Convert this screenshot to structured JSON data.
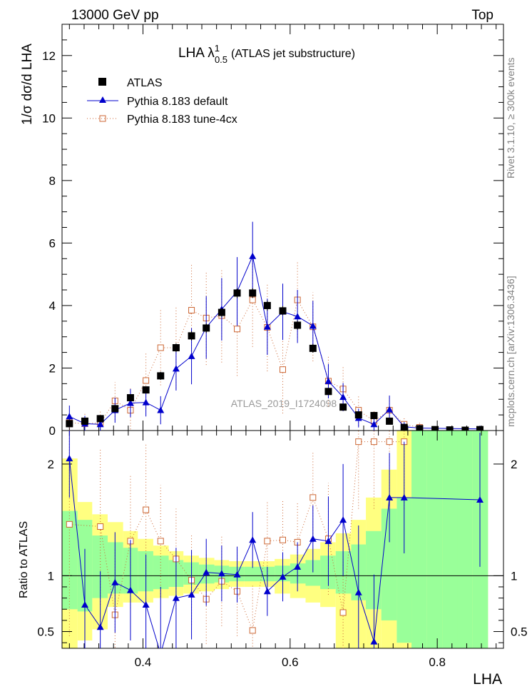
{
  "header": {
    "energy_label": "13000 GeV pp",
    "process_label": "Top"
  },
  "side_labels": {
    "rivet": "Rivet 3.1.10, ≥ 300k events",
    "mcplots": "mcplots.cern.ch [arXiv:1306.3436]"
  },
  "chart_data": {
    "type": "scatter",
    "title": "LHA λ¹₀.₅ (ATLAS jet substructure)",
    "analysis_id": "ATLAS_2019_I1724098",
    "xlabel": "LHA",
    "ylabel_main": "1/σ dσ/d LHA",
    "ylabel_ratio": "Ratio to ATLAS",
    "xlim": [
      0.29,
      0.89
    ],
    "ylim_main": [
      0,
      13
    ],
    "ylim_ratio": [
      0.35,
      2.3
    ],
    "x_ticks": [
      0.4,
      0.6,
      0.8
    ],
    "y_ticks_main": [
      0,
      2,
      4,
      6,
      8,
      10,
      12
    ],
    "y_ticks_ratio": [
      0.5,
      1,
      2
    ],
    "x_tick_labels": [
      "0.4",
      "0.6",
      "0.8"
    ],
    "y_tick_labels_main": [
      "0",
      "2",
      "4",
      "6",
      "8",
      "10",
      "12"
    ],
    "y_tick_labels_ratio": [
      "0.5",
      "1",
      "2"
    ],
    "legend": {
      "placement": "top-left",
      "entries": [
        "ATLAS",
        "Pythia 8.183 default",
        "Pythia 8.183 tune-4cx"
      ]
    },
    "bins": [
      0.29,
      0.311,
      0.331,
      0.352,
      0.373,
      0.393,
      0.414,
      0.435,
      0.455,
      0.476,
      0.497,
      0.517,
      0.538,
      0.559,
      0.579,
      0.6,
      0.621,
      0.641,
      0.662,
      0.683,
      0.703,
      0.724,
      0.745,
      0.765,
      0.786,
      0.807,
      0.827,
      0.848,
      0.869
    ],
    "atlas": {
      "name": "ATLAS",
      "color": "#000000",
      "x": [
        0.3,
        0.321,
        0.342,
        0.362,
        0.383,
        0.404,
        0.424,
        0.445,
        0.466,
        0.486,
        0.507,
        0.528,
        0.549,
        0.569,
        0.59,
        0.61,
        0.631,
        0.652,
        0.672,
        0.693,
        0.714,
        0.735,
        0.755,
        0.776,
        0.797,
        0.817,
        0.838,
        0.858
      ],
      "y": [
        0.22,
        0.3,
        0.38,
        0.7,
        1.05,
        1.3,
        1.75,
        2.65,
        3.03,
        3.28,
        3.78,
        4.4,
        4.4,
        4.0,
        3.83,
        3.37,
        2.63,
        1.25,
        0.75,
        0.5,
        0.48,
        0.3,
        0.1,
        0.06,
        0.03,
        0.02,
        0.01,
        0.03
      ],
      "yerr": [
        0.04,
        0.04,
        0.05,
        0.08,
        0.1,
        0.11,
        0.13,
        0.14,
        0.15,
        0.15,
        0.15,
        0.16,
        0.16,
        0.16,
        0.15,
        0.15,
        0.14,
        0.11,
        0.08,
        0.07,
        0.07,
        0.06,
        0.04,
        0.03,
        0.02,
        0.02,
        0.01,
        0.02
      ]
    },
    "series": [
      {
        "name": "Pythia 8.183 default",
        "color": "#0000cc",
        "marker": "triangle",
        "x": [
          0.3,
          0.321,
          0.342,
          0.362,
          0.383,
          0.404,
          0.424,
          0.445,
          0.466,
          0.486,
          0.507,
          0.528,
          0.549,
          0.569,
          0.59,
          0.61,
          0.631,
          0.652,
          0.672,
          0.693,
          0.714,
          0.735,
          0.755,
          0.776,
          0.858
        ],
        "y": [
          0.45,
          0.22,
          0.2,
          0.65,
          0.88,
          0.9,
          0.65,
          1.98,
          2.38,
          3.3,
          3.88,
          4.45,
          5.58,
          3.32,
          3.8,
          3.65,
          3.35,
          1.58,
          1.07,
          0.4,
          0.2,
          0.67,
          0.12,
          0.08,
          0.05
        ],
        "yerr": [
          0.35,
          0.25,
          0.25,
          0.4,
          0.45,
          0.45,
          0.45,
          0.7,
          0.9,
          1.0,
          1.0,
          1.1,
          1.1,
          0.9,
          0.9,
          0.85,
          0.8,
          0.55,
          0.45,
          0.3,
          0.25,
          0.45,
          0.15,
          0.1,
          0.08
        ],
        "ratio_x": [
          0.3,
          0.321,
          0.342,
          0.362,
          0.383,
          0.404,
          0.424,
          0.445,
          0.466,
          0.486,
          0.507,
          0.528,
          0.549,
          0.569,
          0.59,
          0.61,
          0.631,
          0.652,
          0.672,
          0.693,
          0.714,
          0.735,
          0.755,
          0.858
        ],
        "ratio": [
          2.05,
          0.74,
          0.54,
          0.94,
          0.87,
          0.74,
          0.3,
          0.8,
          0.83,
          1.03,
          1.02,
          1.01,
          1.32,
          0.86,
          0.99,
          1.08,
          1.33,
          1.31,
          1.5,
          0.85,
          0.41,
          1.7,
          1.7,
          1.68
        ],
        "ratio_err": [
          0.35,
          0.5,
          0.5,
          0.45,
          0.45,
          0.45,
          0.6,
          0.45,
          0.4,
          0.3,
          0.25,
          0.25,
          0.25,
          0.22,
          0.22,
          0.22,
          0.3,
          0.4,
          0.5,
          0.6,
          0.6,
          0.4,
          0.5,
          0.6
        ]
      },
      {
        "name": "Pythia 8.183 tune-4cx",
        "color": "#cc6633",
        "marker": "open-square",
        "x": [
          0.3,
          0.321,
          0.342,
          0.362,
          0.383,
          0.404,
          0.424,
          0.445,
          0.466,
          0.486,
          0.507,
          0.528,
          0.549,
          0.569,
          0.59,
          0.61,
          0.631,
          0.652,
          0.672,
          0.693,
          0.714,
          0.735,
          0.755,
          0.776
        ],
        "y": [
          0.25,
          0.22,
          0.25,
          0.95,
          0.65,
          1.6,
          2.65,
          2.65,
          3.85,
          3.6,
          3.68,
          3.25,
          4.18,
          3.3,
          1.95,
          4.18,
          3.32,
          1.58,
          1.33,
          0.65,
          0.3,
          0.65,
          0.2,
          0.1
        ],
        "yerr": [
          0.35,
          0.35,
          0.4,
          0.6,
          0.7,
          0.9,
          1.2,
          1.3,
          1.5,
          1.5,
          1.5,
          1.5,
          1.5,
          1.4,
          1.4,
          1.2,
          1.1,
          0.8,
          0.7,
          0.5,
          0.35,
          0.45,
          0.2,
          0.15
        ],
        "ratio_x": [
          0.3,
          0.342,
          0.362,
          0.383,
          0.404,
          0.424,
          0.445,
          0.466,
          0.486,
          0.507,
          0.528,
          0.549,
          0.569,
          0.59,
          0.61,
          0.631,
          0.652,
          0.672,
          0.693,
          0.714,
          0.735,
          0.755
        ],
        "ratio": [
          1.46,
          1.44,
          0.65,
          1.31,
          1.59,
          1.31,
          1.15,
          0.96,
          0.79,
          0.95,
          0.86,
          0.51,
          1.31,
          1.32,
          1.3,
          1.7,
          1.33,
          0.67,
          2.2,
          2.2,
          2.2,
          2.2
        ],
        "ratio_err": [
          1.0,
          0.7,
          0.6,
          0.6,
          0.6,
          0.5,
          0.45,
          0.4,
          0.4,
          0.4,
          0.4,
          0.4,
          0.35,
          0.35,
          0.35,
          0.4,
          0.5,
          0.5,
          0.6,
          0.6,
          0.6,
          0.6
        ]
      }
    ],
    "ratio_bands": {
      "inner_color": "#99ff99",
      "outer_color": "#ffff80",
      "inner_lo": [
        0.7,
        0.68,
        0.8,
        0.84,
        0.84,
        0.86,
        0.88,
        0.9,
        0.92,
        0.93,
        0.94,
        0.95,
        0.95,
        0.95,
        0.95,
        0.93,
        0.91,
        0.88,
        0.84,
        0.78,
        0.7,
        0.6,
        0.4,
        0.3,
        0.3,
        0.3,
        0.3,
        0.3
      ],
      "inner_hi": [
        1.58,
        1.5,
        1.36,
        1.3,
        1.25,
        1.22,
        1.18,
        1.14,
        1.12,
        1.1,
        1.09,
        1.08,
        1.08,
        1.08,
        1.09,
        1.11,
        1.14,
        1.18,
        1.22,
        1.28,
        1.4,
        1.6,
        1.7,
        2.3,
        2.3,
        2.3,
        2.3,
        2.3
      ],
      "outer_lo": [
        0.3,
        0.42,
        0.52,
        0.72,
        0.76,
        0.76,
        0.8,
        0.82,
        0.84,
        0.86,
        0.88,
        0.9,
        0.9,
        0.9,
        0.84,
        0.8,
        0.76,
        0.72,
        0.3,
        0.3,
        0.3,
        0.3,
        0.3,
        0.3,
        0.3,
        0.3,
        0.3,
        0.3
      ],
      "outer_hi": [
        2.05,
        1.66,
        1.55,
        1.48,
        1.4,
        1.33,
        1.27,
        1.22,
        1.18,
        1.16,
        1.14,
        1.13,
        1.13,
        1.13,
        1.15,
        1.19,
        1.24,
        1.3,
        1.38,
        1.5,
        1.7,
        1.95,
        2.3,
        2.3,
        2.3,
        2.3,
        2.3,
        2.3
      ]
    }
  }
}
